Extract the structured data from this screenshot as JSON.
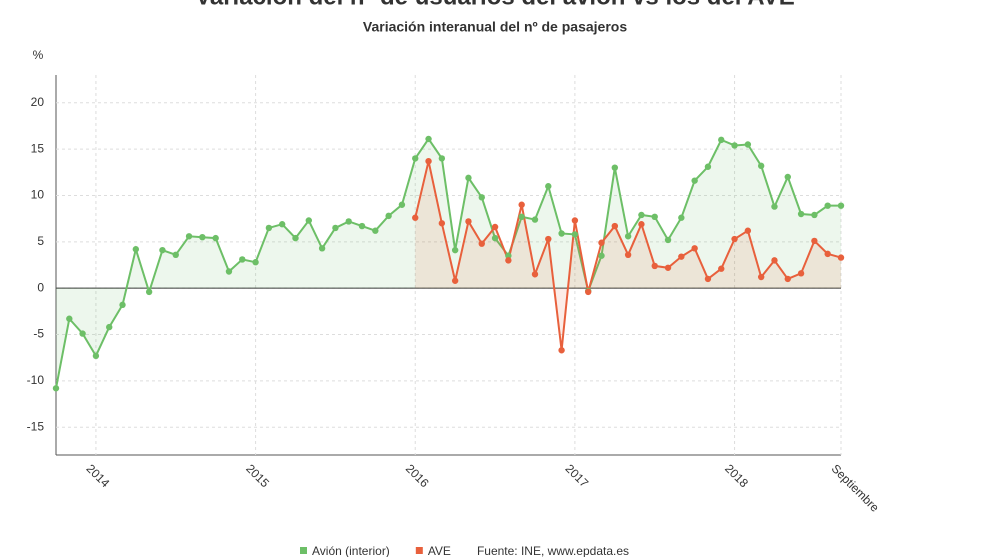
{
  "chart_data": {
    "type": "line",
    "title": "Variación del nº de usuarios del avión vs los del AVE",
    "subtitle": "Variación interanual del nº de pasajeros",
    "y_label": "%",
    "source": "Fuente: INE, www.epdata.es",
    "categories": [
      null,
      null,
      null,
      "2014",
      null,
      null,
      null,
      null,
      null,
      null,
      null,
      null,
      null,
      null,
      null,
      "2015",
      null,
      null,
      null,
      null,
      null,
      null,
      null,
      null,
      null,
      null,
      null,
      "2016",
      null,
      null,
      null,
      null,
      null,
      null,
      null,
      null,
      null,
      null,
      null,
      "2017",
      null,
      null,
      null,
      null,
      null,
      null,
      null,
      null,
      null,
      null,
      null,
      "2018",
      null,
      null,
      null,
      null,
      null,
      null,
      null,
      "Septiembre"
    ],
    "series": [
      {
        "name": "Avión (interior)",
        "color": "#6dbf67",
        "values": [
          -10.8,
          -3.3,
          -4.9,
          -7.3,
          -4.2,
          -1.8,
          4.2,
          -0.4,
          4.1,
          3.6,
          5.6,
          5.5,
          5.4,
          1.8,
          3.1,
          2.8,
          6.5,
          6.9,
          5.4,
          7.3,
          4.3,
          6.5,
          7.2,
          6.7,
          6.2,
          7.8,
          9.0,
          14.0,
          16.1,
          14.0,
          4.1,
          11.9,
          9.8,
          5.4,
          3.5,
          7.7,
          7.4,
          11.0,
          5.9,
          5.8,
          -0.3,
          3.5,
          13.0,
          5.6,
          7.9,
          7.7,
          5.2,
          7.6,
          11.6,
          13.1,
          16.0,
          15.4,
          15.5,
          13.2,
          8.8,
          12.0,
          8.0,
          7.9,
          8.9,
          8.9
        ]
      },
      {
        "name": "AVE",
        "color": "#e8603c",
        "values": [
          null,
          null,
          null,
          null,
          null,
          null,
          null,
          null,
          null,
          null,
          null,
          null,
          null,
          null,
          null,
          null,
          null,
          null,
          null,
          null,
          null,
          null,
          null,
          null,
          null,
          null,
          null,
          7.6,
          13.7,
          7.0,
          0.8,
          7.2,
          4.8,
          6.6,
          3.0,
          9.0,
          1.5,
          5.3,
          -6.7,
          7.3,
          -0.4,
          4.9,
          6.7,
          3.6,
          6.9,
          2.4,
          2.2,
          3.4,
          4.3,
          1.0,
          2.1,
          5.3,
          6.2,
          1.2,
          3.0,
          1.0,
          1.6,
          5.1,
          3.7,
          3.3
        ]
      }
    ],
    "ylim": [
      -18,
      23
    ],
    "yticks": [
      -15,
      -10,
      -5,
      0,
      5,
      10,
      15,
      20
    ],
    "grid": true
  }
}
